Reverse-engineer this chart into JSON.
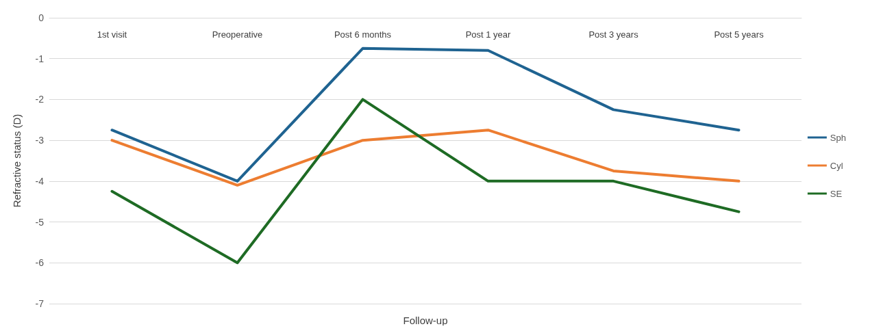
{
  "chart_data": {
    "type": "line",
    "xlabel": "Follow-up",
    "ylabel": "Refractive status (D)",
    "categories": [
      "1st visit",
      "Preoperative",
      "Post 6 months",
      "Post 1 year",
      "Post 3 years",
      "Post 5 years"
    ],
    "series": [
      {
        "name": "Sph",
        "color": "#1f6391",
        "values": [
          -2.75,
          -4.0,
          -0.75,
          -0.8,
          -2.25,
          -2.75
        ]
      },
      {
        "name": "Cyl",
        "color": "#ed7d31",
        "values": [
          -3.0,
          -4.1,
          -3.0,
          -2.75,
          -3.75,
          -4.0
        ]
      },
      {
        "name": "SE",
        "color": "#1e6b24",
        "values": [
          -4.25,
          -6.0,
          -2.0,
          -4.0,
          -4.0,
          -4.75
        ]
      }
    ],
    "ylim": [
      -7,
      0
    ],
    "yticks": [
      -7,
      -6,
      -5,
      -4,
      -3,
      -2,
      -1,
      0
    ],
    "grid": "y",
    "legend": "right",
    "marker": "none",
    "line_style": "solid"
  }
}
